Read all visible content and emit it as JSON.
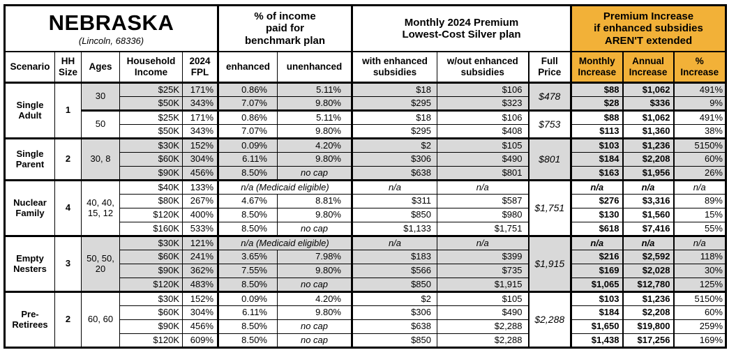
{
  "title": {
    "state": "NEBRASKA",
    "subtitle": "(Lincoln, 68336)"
  },
  "colors": {
    "accent": "#F2B138",
    "shade": "#D9D9D9"
  },
  "group_headers": {
    "income_pct": "% of income\npaid for\nbenchmark plan",
    "premium": "Monthly 2024 Premium\nLowest-Cost Silver plan",
    "increase": "Premium Increase\nif enhanced subsidies\nAREN'T extended"
  },
  "headers": {
    "scenario": "Scenario",
    "hh_size": "HH\nSize",
    "ages": "Ages",
    "income": "Household\nIncome",
    "fpl": "2024\nFPL",
    "enhanced": "enhanced",
    "unenhanced": "unenhanced",
    "with_sub": "with enhanced\nsubsidies",
    "wout_sub": "w/out enhanced\nsubsidies",
    "full_price": "Full\nPrice",
    "monthly": "Monthly\nIncrease",
    "annual": "Annual\nIncrease",
    "pct": "%\nIncrease"
  },
  "special_values": {
    "no_cap": "no cap",
    "na": "n/a",
    "medicaid": "n/a (Medicaid eligible)"
  },
  "groups": [
    {
      "scenario": "Single\nAdult",
      "hh_size": "1",
      "blocks": [
        {
          "ages": "30",
          "full_price": "$478",
          "shaded": true,
          "rows": [
            [
              "$25K",
              "171%",
              "0.86%",
              "5.11%",
              "$18",
              "$106",
              "$88",
              "$1,062",
              "491%"
            ],
            [
              "$50K",
              "343%",
              "7.07%",
              "9.80%",
              "$295",
              "$323",
              "$28",
              "$336",
              "9%"
            ]
          ]
        },
        {
          "ages": "50",
          "full_price": "$753",
          "shaded": false,
          "rows": [
            [
              "$25K",
              "171%",
              "0.86%",
              "5.11%",
              "$18",
              "$106",
              "$88",
              "$1,062",
              "491%"
            ],
            [
              "$50K",
              "343%",
              "7.07%",
              "9.80%",
              "$295",
              "$408",
              "$113",
              "$1,360",
              "38%"
            ]
          ]
        }
      ]
    },
    {
      "scenario": "Single\nParent",
      "hh_size": "2",
      "blocks": [
        {
          "ages": "30, 8",
          "full_price": "$801",
          "shaded": true,
          "rows": [
            [
              "$30K",
              "152%",
              "0.09%",
              "4.20%",
              "$2",
              "$105",
              "$103",
              "$1,236",
              "5150%"
            ],
            [
              "$60K",
              "304%",
              "6.11%",
              "9.80%",
              "$306",
              "$490",
              "$184",
              "$2,208",
              "60%"
            ],
            [
              "$90K",
              "456%",
              "8.50%",
              "no cap",
              "$638",
              "$801",
              "$163",
              "$1,956",
              "26%"
            ]
          ]
        }
      ]
    },
    {
      "scenario": "Nuclear\nFamily",
      "hh_size": "4",
      "blocks": [
        {
          "ages": "40, 40, 15, 12",
          "full_price": "$1,751",
          "shaded": false,
          "rows": [
            [
              "$40K",
              "133%",
              "n/a (Medicaid eligible)",
              null,
              "n/a",
              "n/a",
              "n/a",
              "n/a",
              "n/a"
            ],
            [
              "$80K",
              "267%",
              "4.67%",
              "8.81%",
              "$311",
              "$587",
              "$276",
              "$3,316",
              "89%"
            ],
            [
              "$120K",
              "400%",
              "8.50%",
              "9.80%",
              "$850",
              "$980",
              "$130",
              "$1,560",
              "15%"
            ],
            [
              "$160K",
              "533%",
              "8.50%",
              "no cap",
              "$1,133",
              "$1,751",
              "$618",
              "$7,416",
              "55%"
            ]
          ]
        }
      ]
    },
    {
      "scenario": "Empty\nNesters",
      "hh_size": "3",
      "blocks": [
        {
          "ages": "50, 50, 20",
          "full_price": "$1,915",
          "shaded": true,
          "rows": [
            [
              "$30K",
              "121%",
              "n/a (Medicaid eligible)",
              null,
              "n/a",
              "n/a",
              "n/a",
              "n/a",
              "n/a"
            ],
            [
              "$60K",
              "241%",
              "3.65%",
              "7.98%",
              "$183",
              "$399",
              "$216",
              "$2,592",
              "118%"
            ],
            [
              "$90K",
              "362%",
              "7.55%",
              "9.80%",
              "$566",
              "$735",
              "$169",
              "$2,028",
              "30%"
            ],
            [
              "$120K",
              "483%",
              "8.50%",
              "no cap",
              "$850",
              "$1,915",
              "$1,065",
              "$12,780",
              "125%"
            ]
          ]
        }
      ]
    },
    {
      "scenario": "Pre-\nRetirees",
      "hh_size": "2",
      "blocks": [
        {
          "ages": "60, 60",
          "full_price": "$2,288",
          "shaded": false,
          "rows": [
            [
              "$30K",
              "152%",
              "0.09%",
              "4.20%",
              "$2",
              "$105",
              "$103",
              "$1,236",
              "5150%"
            ],
            [
              "$60K",
              "304%",
              "6.11%",
              "9.80%",
              "$306",
              "$490",
              "$184",
              "$2,208",
              "60%"
            ],
            [
              "$90K",
              "456%",
              "8.50%",
              "no cap",
              "$638",
              "$2,288",
              "$1,650",
              "$19,800",
              "259%"
            ],
            [
              "$120K",
              "609%",
              "8.50%",
              "no cap",
              "$850",
              "$2,288",
              "$1,438",
              "$17,256",
              "169%"
            ]
          ]
        }
      ]
    }
  ]
}
